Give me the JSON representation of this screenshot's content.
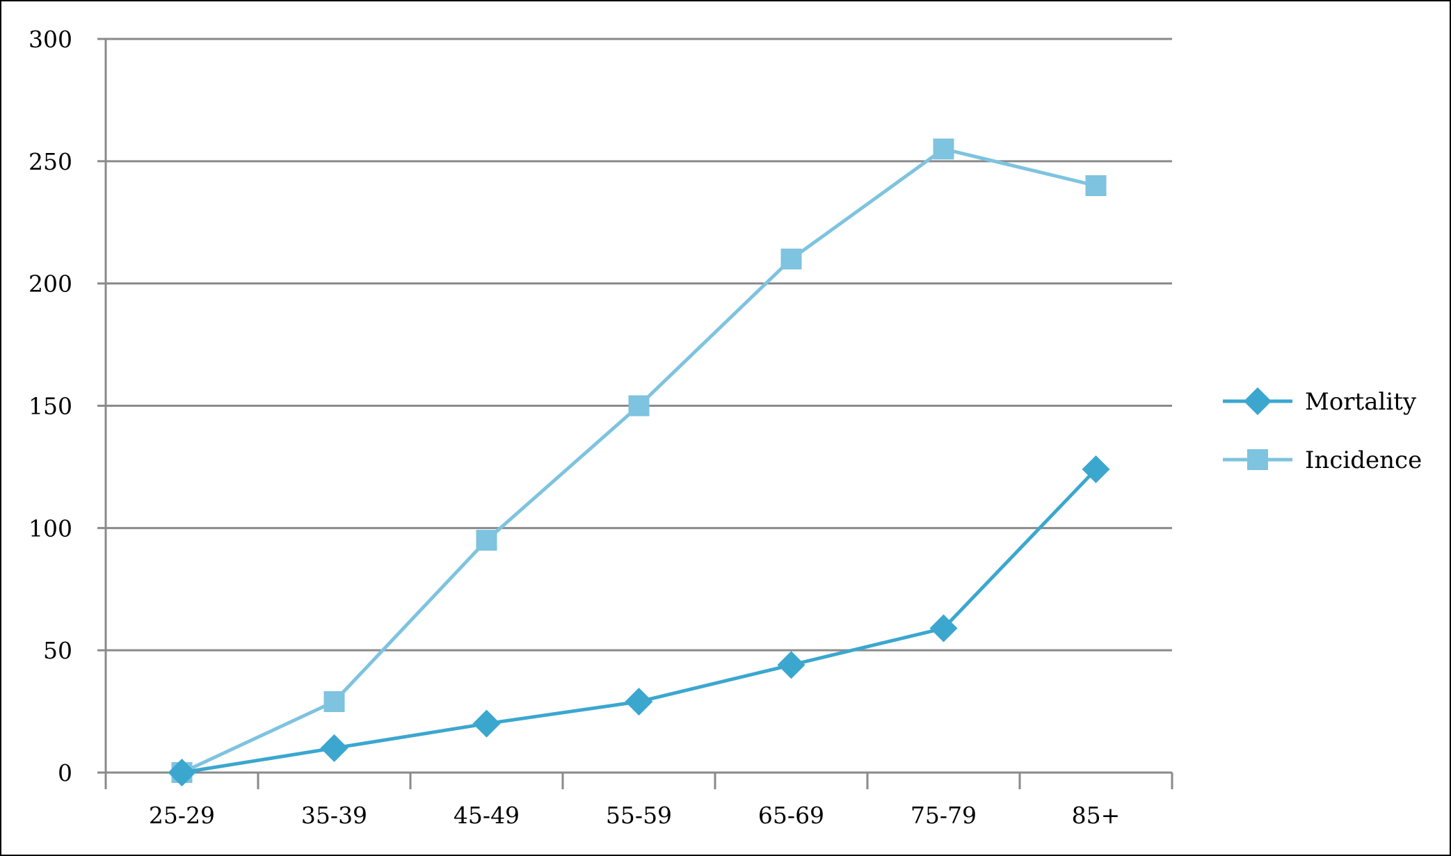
{
  "chart_data": {
    "type": "line",
    "title": "",
    "xlabel": "",
    "ylabel": "",
    "categories": [
      "25-29",
      "35-39",
      "45-49",
      "55-59",
      "65-69",
      "75-79",
      "85+"
    ],
    "ylim": [
      0,
      300
    ],
    "yticks": [
      0,
      50,
      100,
      150,
      200,
      250,
      300
    ],
    "grid": true,
    "legend_position": "right",
    "series": [
      {
        "name": "Mortality",
        "values": [
          0,
          10,
          20,
          29,
          44,
          59,
          124
        ],
        "color": "#3BA7CF",
        "marker": "diamond"
      },
      {
        "name": "Incidence",
        "values": [
          0,
          29,
          95,
          150,
          210,
          255,
          240
        ],
        "color": "#7EC3DF",
        "marker": "square"
      }
    ]
  }
}
